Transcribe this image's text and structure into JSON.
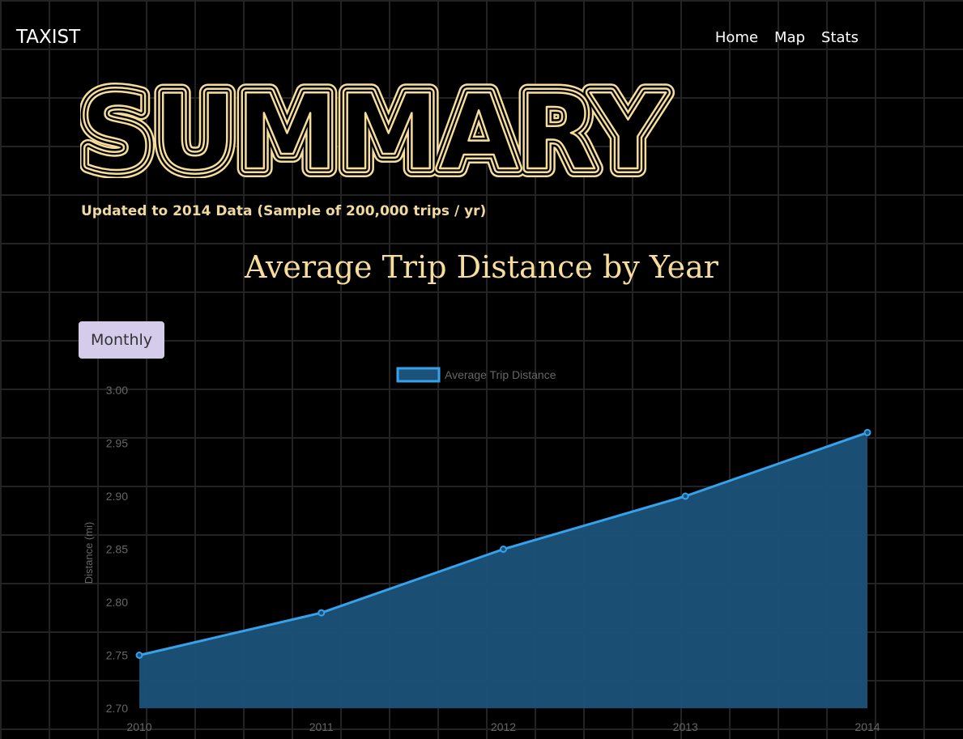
{
  "nav": {
    "brand": "TAXIST",
    "links": [
      {
        "label": "Home"
      },
      {
        "label": "Map"
      },
      {
        "label": "Stats"
      }
    ]
  },
  "hero": {
    "title": "SUMMARY",
    "subtitle": "Updated to 2014 Data (Sample of 200,000 trips / yr)"
  },
  "chart_heading": "Average Trip Distance by Year",
  "toggle_label": "Monthly",
  "colors": {
    "accent_gold": "#f7dd9b",
    "series_line": "#36a2eb",
    "series_fill": "#1c5279",
    "button_bg": "#d5ccec"
  },
  "chart_data": {
    "type": "area",
    "x": [
      "2010",
      "2011",
      "2012",
      "2013",
      "2014"
    ],
    "series": [
      {
        "name": "Average Trip Distance",
        "values": [
          2.75,
          2.79,
          2.85,
          2.9,
          2.96
        ]
      }
    ],
    "ylabel": "Distance (mi)",
    "xlabel": "",
    "ylim": [
      2.7,
      3.0
    ],
    "yticks": [
      "3.00",
      "2.95",
      "2.90",
      "2.85",
      "2.80",
      "2.75",
      "2.70"
    ],
    "legend_position": "top-center",
    "grid": true
  }
}
